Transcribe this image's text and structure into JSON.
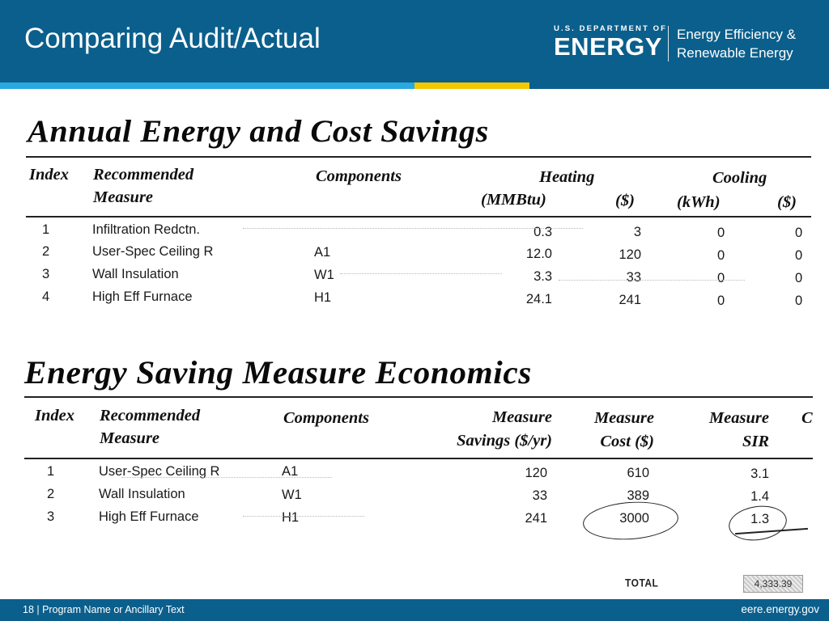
{
  "header": {
    "title": "Comparing Audit/Actual",
    "logo_small": "U.S. DEPARTMENT OF",
    "logo_big": "ENERGY",
    "office_line1": "Energy Efficiency &",
    "office_line2": "Renewable Energy"
  },
  "savings_table": {
    "title": "Annual Energy and Cost Savings",
    "headers": {
      "index": "Index",
      "measure_line1": "Recommended",
      "measure_line2": "Measure",
      "components": "Components",
      "heating": "Heating",
      "cooling": "Cooling",
      "mmbtu": "(MMBtu)",
      "heat_dollars": "($)",
      "kwh": "(kWh)",
      "cool_dollars": "($)"
    },
    "rows": [
      {
        "index": "1",
        "measure": "Infiltration Redctn.",
        "component": "",
        "mmbtu": "0.3",
        "heat_dollars": "3",
        "kwh": "0",
        "cool_dollars": "0"
      },
      {
        "index": "2",
        "measure": "User-Spec Ceiling R",
        "component": "A1",
        "mmbtu": "12.0",
        "heat_dollars": "120",
        "kwh": "0",
        "cool_dollars": "0"
      },
      {
        "index": "3",
        "measure": "Wall Insulation",
        "component": "W1",
        "mmbtu": "3.3",
        "heat_dollars": "33",
        "kwh": "0",
        "cool_dollars": "0"
      },
      {
        "index": "4",
        "measure": "High Eff Furnace",
        "component": "H1",
        "mmbtu": "24.1",
        "heat_dollars": "241",
        "kwh": "0",
        "cool_dollars": "0"
      }
    ]
  },
  "economics_table": {
    "title": "Energy Saving Measure Economics",
    "headers": {
      "index": "Index",
      "measure_line1": "Recommended",
      "measure_line2": "Measure",
      "components": "Components",
      "savings_line1": "Measure",
      "savings_line2": "Savings ($/yr)",
      "cost_line1": "Measure",
      "cost_line2": "Cost ($)",
      "sir_line1": "Measure",
      "sir_line2": "SIR",
      "cut_off": "C"
    },
    "rows": [
      {
        "index": "1",
        "measure": "User-Spec Ceiling R",
        "component": "A1",
        "savings": "120",
        "cost": "610",
        "sir": "3.1"
      },
      {
        "index": "2",
        "measure": "Wall Insulation",
        "component": "W1",
        "savings": "33",
        "cost": "389",
        "sir": "1.4"
      },
      {
        "index": "3",
        "measure": "High Eff Furnace",
        "component": "H1",
        "savings": "241",
        "cost": "3000",
        "sir": "1.3"
      }
    ],
    "total_label": "TOTAL",
    "total_value": "4,333.39"
  },
  "footer": {
    "left": "18 | Program Name or Ancillary Text",
    "right": "eere.energy.gov"
  },
  "colors": {
    "header_blue": "#0b5f8c",
    "stripe_light_blue": "#2aa8e0",
    "stripe_yellow": "#f3c800"
  }
}
